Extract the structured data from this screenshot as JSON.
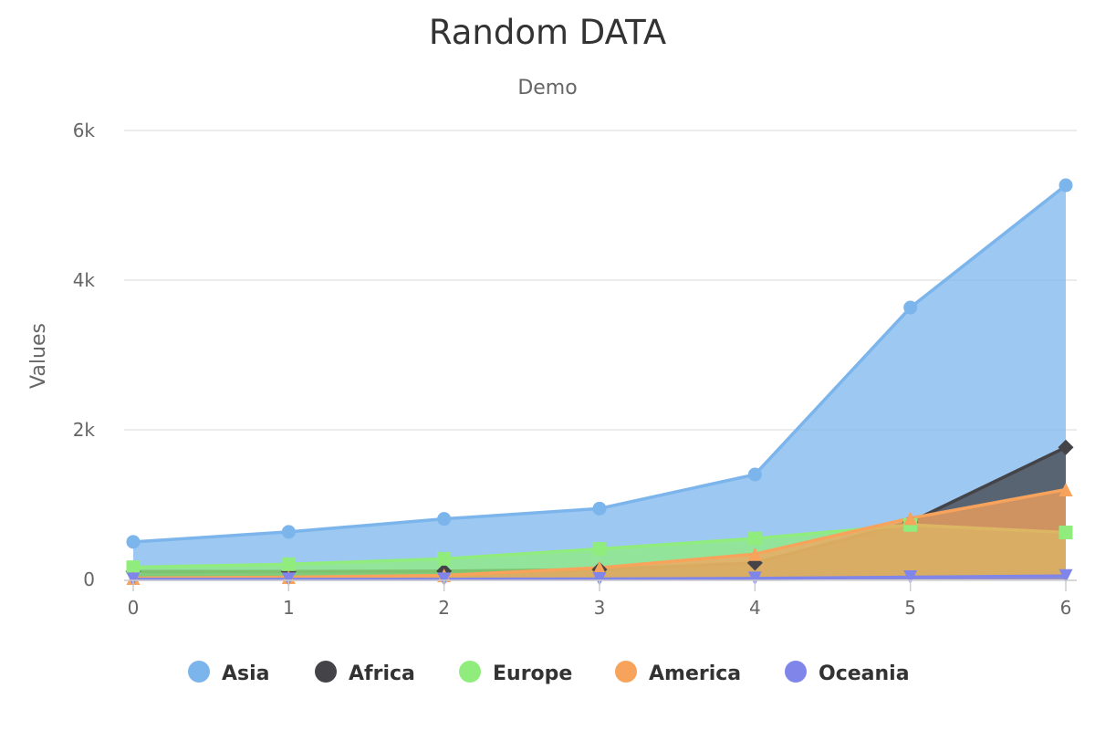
{
  "chart_data": {
    "type": "area",
    "title": "Random DATA",
    "subtitle": "Demo",
    "xlabel": "",
    "ylabel": "Values",
    "x": [
      0,
      1,
      2,
      3,
      4,
      5,
      6
    ],
    "x_tick_labels": [
      "0",
      "1",
      "2",
      "3",
      "4",
      "5",
      "6"
    ],
    "ylim": [
      0,
      6000
    ],
    "y_ticks": [
      0,
      2000,
      4000,
      6000
    ],
    "y_tick_labels": [
      "0",
      "2k",
      "4k",
      "6k"
    ],
    "grid": true,
    "stacked": false,
    "legend_position": "bottom",
    "series": [
      {
        "name": "Asia",
        "color": "#7cb5ec",
        "marker": "circle",
        "values": [
          502,
          635,
          809,
          947,
          1402,
          3634,
          5268
        ]
      },
      {
        "name": "Africa",
        "color": "#434348",
        "marker": "diamond",
        "values": [
          106,
          107,
          111,
          133,
          221,
          767,
          1766
        ]
      },
      {
        "name": "Europe",
        "color": "#90ed7d",
        "marker": "square",
        "values": [
          163,
          203,
          276,
          408,
          547,
          729,
          628
        ]
      },
      {
        "name": "America",
        "color": "#f7a35c",
        "marker": "triangle",
        "values": [
          18,
          31,
          54,
          156,
          339,
          818,
          1201
        ]
      },
      {
        "name": "Oceania",
        "color": "#8085e9",
        "marker": "triangle-down",
        "values": [
          2,
          2,
          2,
          6,
          13,
          30,
          46
        ]
      }
    ]
  }
}
